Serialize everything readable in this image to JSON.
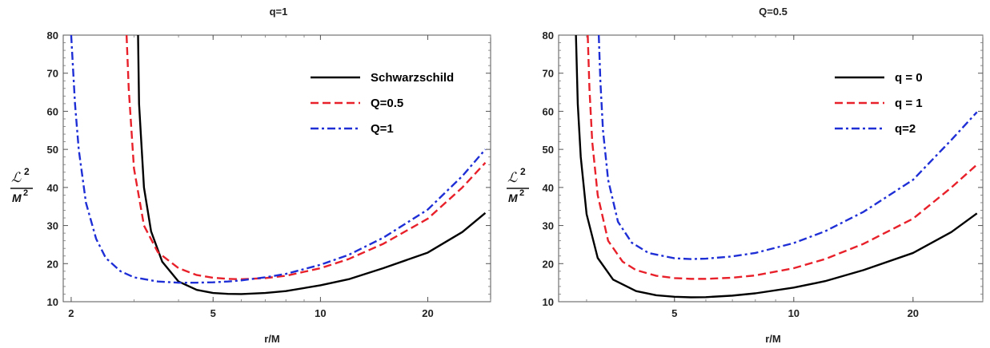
{
  "chart_data": [
    {
      "type": "line",
      "title": "q=1",
      "xlabel": "r/M",
      "ylabel_main": "ℒ",
      "ylabel_sup": "2",
      "ylabel_den": "M",
      "ylabel_den_sup": "2",
      "xscale": "log",
      "xlim": [
        1.9,
        30
      ],
      "ylim": [
        10,
        80
      ],
      "xticks": [
        2,
        5,
        10,
        20
      ],
      "yticks": [
        10,
        20,
        30,
        40,
        50,
        60,
        70,
        80
      ],
      "legend_position": "top-right",
      "grid": false,
      "series": [
        {
          "name": "Schwarzschild",
          "color": "#000000",
          "dash": "solid",
          "x": [
            3.08,
            3.1,
            3.2,
            3.35,
            3.6,
            4.0,
            4.5,
            5.0,
            5.5,
            6.0,
            7.0,
            8.0,
            10.0,
            12.0,
            15.0,
            20.0,
            25.0,
            29.0
          ],
          "y": [
            80,
            62,
            40,
            28.5,
            20.5,
            15.3,
            13.1,
            12.3,
            12.05,
            12.0,
            12.3,
            12.8,
            14.3,
            15.9,
            18.8,
            22.9,
            28.3,
            33.3
          ]
        },
        {
          "name": "Q=0.5",
          "color": "#e8202a",
          "dash": "dashed",
          "x": [
            2.86,
            2.9,
            3.0,
            3.2,
            3.5,
            4.0,
            4.5,
            5.0,
            5.5,
            6.0,
            7.0,
            8.0,
            10.0,
            12.0,
            15.0,
            20.0,
            25.0,
            29.0
          ],
          "y": [
            80,
            66,
            45,
            30,
            23,
            18.8,
            17.0,
            16.3,
            16.0,
            15.9,
            16.2,
            16.8,
            18.8,
            21.2,
            25.2,
            31.8,
            40.0,
            46.5
          ]
        },
        {
          "name": "Q=1",
          "color": "#1f2fd6",
          "dash": "dashdot",
          "x": [
            2.0,
            2.05,
            2.1,
            2.2,
            2.35,
            2.5,
            2.75,
            3.0,
            3.5,
            4.0,
            4.5,
            5.0,
            5.5,
            6.0,
            7.0,
            8.0,
            10.0,
            12.0,
            15.0,
            20.0,
            25.0,
            29.0
          ],
          "y": [
            80,
            62,
            50,
            36,
            26.5,
            21.5,
            18.0,
            16.4,
            15.3,
            15.0,
            15.0,
            15.1,
            15.3,
            15.6,
            16.4,
            17.3,
            19.7,
            22.3,
            26.8,
            34.2,
            43.0,
            50.0
          ]
        }
      ]
    },
    {
      "type": "line",
      "title": "Q=0.5",
      "xlabel": "r/M",
      "ylabel_main": "ℒ",
      "ylabel_sup": "2",
      "ylabel_den": "M",
      "ylabel_den_sup": "2",
      "xscale": "log",
      "xlim": [
        2.55,
        30
      ],
      "ylim": [
        10,
        80
      ],
      "xticks": [
        5,
        10,
        20
      ],
      "yticks": [
        10,
        20,
        30,
        40,
        50,
        60,
        70,
        80
      ],
      "legend_position": "top-right",
      "grid": false,
      "series": [
        {
          "name": "q = 0",
          "color": "#000000",
          "dash": "solid",
          "x": [
            2.82,
            2.85,
            2.9,
            3.0,
            3.2,
            3.5,
            4.0,
            4.5,
            5.0,
            5.5,
            6.0,
            7.0,
            8.0,
            10.0,
            12.0,
            15.0,
            20.0,
            25.0,
            29.0
          ],
          "y": [
            80,
            62,
            48,
            33,
            21.5,
            15.8,
            12.8,
            11.7,
            11.3,
            11.15,
            11.2,
            11.6,
            12.2,
            13.7,
            15.4,
            18.3,
            22.8,
            28.3,
            33.2
          ]
        },
        {
          "name": "q = 1",
          "color": "#e8202a",
          "dash": "dashed",
          "x": [
            3.02,
            3.05,
            3.1,
            3.2,
            3.4,
            3.7,
            4.0,
            4.5,
            5.0,
            5.5,
            6.0,
            7.0,
            8.0,
            10.0,
            12.0,
            15.0,
            20.0,
            25.0,
            29.0
          ],
          "y": [
            80,
            66,
            52,
            38,
            26,
            20.5,
            18.3,
            16.8,
            16.2,
            16.0,
            16.0,
            16.3,
            16.9,
            18.8,
            21.2,
            25.2,
            31.8,
            40.0,
            46.0
          ]
        },
        {
          "name": "q=2",
          "color": "#1f2fd6",
          "dash": "dashdot",
          "x": [
            3.22,
            3.25,
            3.3,
            3.4,
            3.6,
            3.9,
            4.3,
            5.0,
            5.5,
            6.0,
            7.0,
            8.0,
            10.0,
            12.0,
            15.0,
            20.0,
            25.0,
            29.0
          ],
          "y": [
            80,
            68,
            55,
            42,
            31,
            25.5,
            22.8,
            21.4,
            21.2,
            21.3,
            21.9,
            22.8,
            25.4,
            28.5,
            33.6,
            42.0,
            52.5,
            59.8
          ]
        }
      ]
    }
  ]
}
